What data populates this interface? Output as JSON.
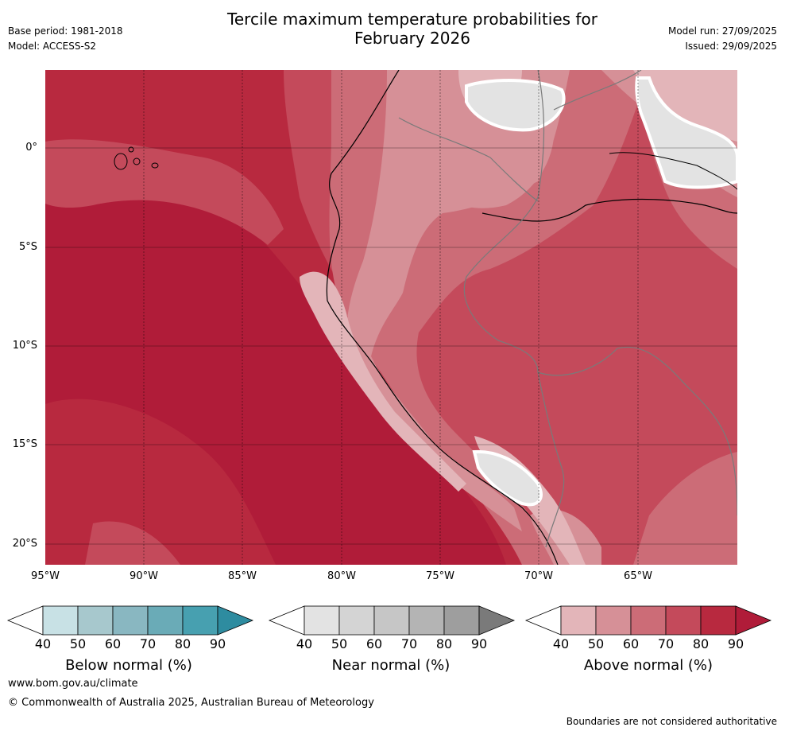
{
  "header": {
    "title_line1": "Tercile maximum temperature probabilities for",
    "title_line2": "February 2026",
    "base_period": "Base period: 1981-2018",
    "model": "Model: ACCESS-S2",
    "model_run": "Model run: 27/09/2025",
    "issued": "Issued: 29/09/2025"
  },
  "map": {
    "lat_labels": [
      "0°",
      "5°S",
      "10°S",
      "15°S",
      "20°S"
    ],
    "lon_labels": [
      "95°W",
      "90°W",
      "85°W",
      "80°W",
      "75°W",
      "70°W",
      "65°W"
    ],
    "colors": {
      "above_90": "#b01c39",
      "above_80": "#b8293f",
      "above_70": "#c44a5b",
      "above_60": "#cc6c77",
      "above_50": "#d69097",
      "above_40": "#e3b5b9",
      "near_50": "#e3e3e3",
      "near_60": "#d2d2d2"
    }
  },
  "colorbars": [
    {
      "label": "Below normal (%)",
      "ticks": [
        "40",
        "50",
        "60",
        "70",
        "80",
        "90"
      ],
      "colors": [
        "#c8e1e5",
        "#a7c8cd",
        "#89b7c1",
        "#6aabb7",
        "#47a0b0",
        "#2e8ca0"
      ]
    },
    {
      "label": "Near normal (%)",
      "ticks": [
        "40",
        "50",
        "60",
        "70",
        "80",
        "90"
      ],
      "colors": [
        "#e3e3e3",
        "#d4d4d4",
        "#c6c6c6",
        "#b4b4b4",
        "#9e9e9e",
        "#7a7a7a"
      ]
    },
    {
      "label": "Above normal (%)",
      "ticks": [
        "40",
        "50",
        "60",
        "70",
        "80",
        "90"
      ],
      "colors": [
        "#e3b5b9",
        "#d69097",
        "#cc6c77",
        "#c44a5b",
        "#b8293f",
        "#b01c39"
      ]
    }
  ],
  "footer": {
    "website": "www.bom.gov.au/climate",
    "copyright": "© Commonwealth of Australia 2025, Australian Bureau of Meteorology",
    "disclaimer": "Boundaries are not considered authoritative"
  }
}
